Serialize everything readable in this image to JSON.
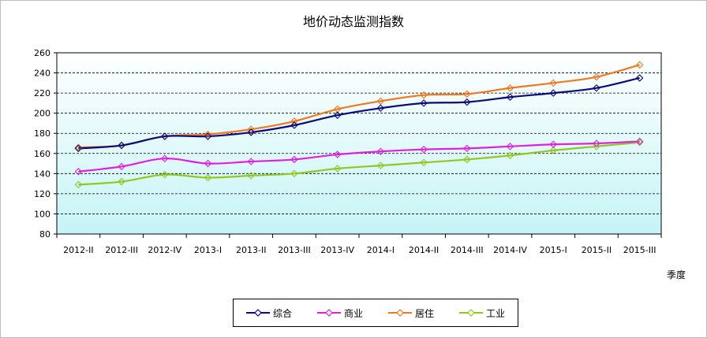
{
  "chart_data": {
    "type": "line",
    "title": "地价动态监测指数",
    "xlabel": "季度",
    "ylabel": "",
    "ylim": [
      80,
      260
    ],
    "yticks": [
      80,
      100,
      120,
      140,
      160,
      180,
      200,
      220,
      240,
      260
    ],
    "grid": true,
    "legend_position": "bottom",
    "categories": [
      "2012-II",
      "2012-III",
      "2012-IV",
      "2013-I",
      "2013-II",
      "2013-III",
      "2013-IV",
      "2014-I",
      "2014-II",
      "2014-III",
      "2014-IV",
      "2015-I",
      "2015-II",
      "2015-III"
    ],
    "series": [
      {
        "name": "综合",
        "color": "#0a0a7a",
        "values": [
          165,
          168,
          177,
          177,
          181,
          188,
          198,
          205,
          210,
          211,
          216,
          220,
          225,
          235
        ]
      },
      {
        "name": "商业",
        "color": "#e020e0",
        "values": [
          142,
          147,
          155,
          150,
          152,
          154,
          159,
          162,
          164,
          165,
          167,
          169,
          170,
          172
        ]
      },
      {
        "name": "居住",
        "color": "#f07820",
        "values": [
          166,
          168,
          177,
          179,
          184,
          192,
          204,
          212,
          218,
          219,
          225,
          230,
          236,
          248
        ]
      },
      {
        "name": "工业",
        "color": "#90c820",
        "values": [
          129,
          132,
          139,
          136,
          138,
          140,
          145,
          148,
          151,
          154,
          158,
          163,
          167,
          171
        ]
      }
    ]
  }
}
